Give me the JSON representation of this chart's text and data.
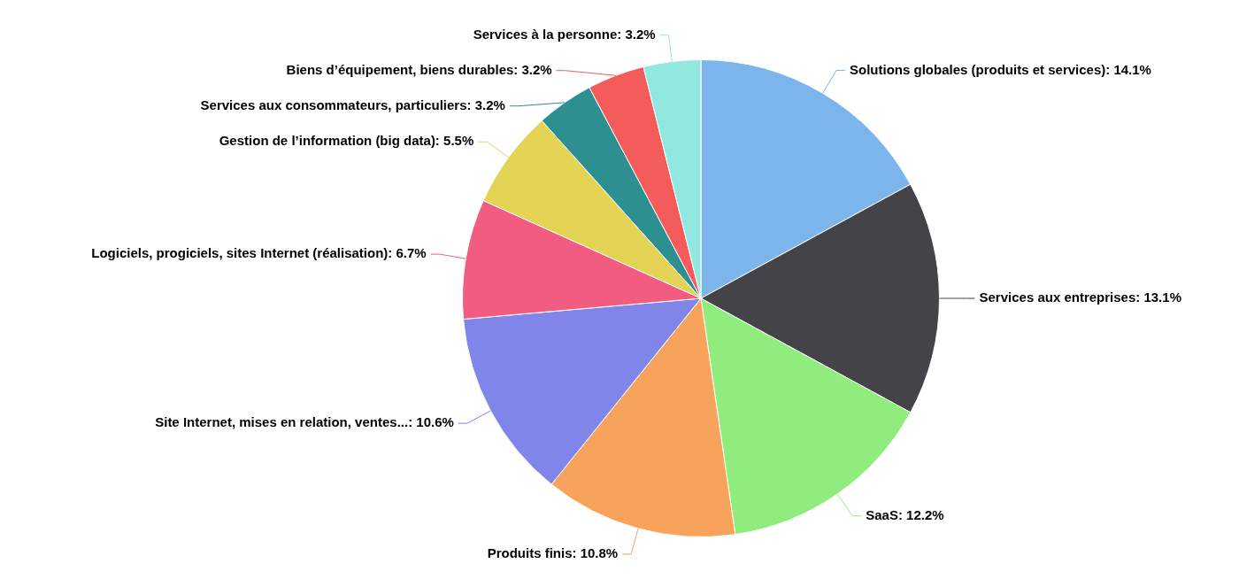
{
  "chart_data": {
    "type": "pie",
    "categories": [
      "Solutions globales (produits et services)",
      "Services aux entreprises",
      "SaaS",
      "Produits finis",
      "Site Internet, mises en relation, ventes...",
      "Logiciels, progiciels, sites Internet (réalisation)",
      "Gestion de l’information (big data)",
      "Services aux consommateurs, particuliers",
      "Biens d’équipement, biens durables",
      "Services à la personne"
    ],
    "values": [
      14.1,
      13.1,
      12.2,
      10.8,
      10.6,
      6.7,
      5.5,
      3.2,
      3.2,
      3.2
    ],
    "colors": [
      "#7cb5ec",
      "#434348",
      "#90ed7d",
      "#f7a35c",
      "#8085e9",
      "#f15c80",
      "#e4d354",
      "#2b908f",
      "#f45b5b",
      "#91e8e1"
    ],
    "value_labels": [
      "14.1%",
      "13.1%",
      "12.2%",
      "10.8%",
      "10.6%",
      "6.7%",
      "5.5%",
      "3.2%",
      "3.2%",
      "3.2%"
    ]
  }
}
